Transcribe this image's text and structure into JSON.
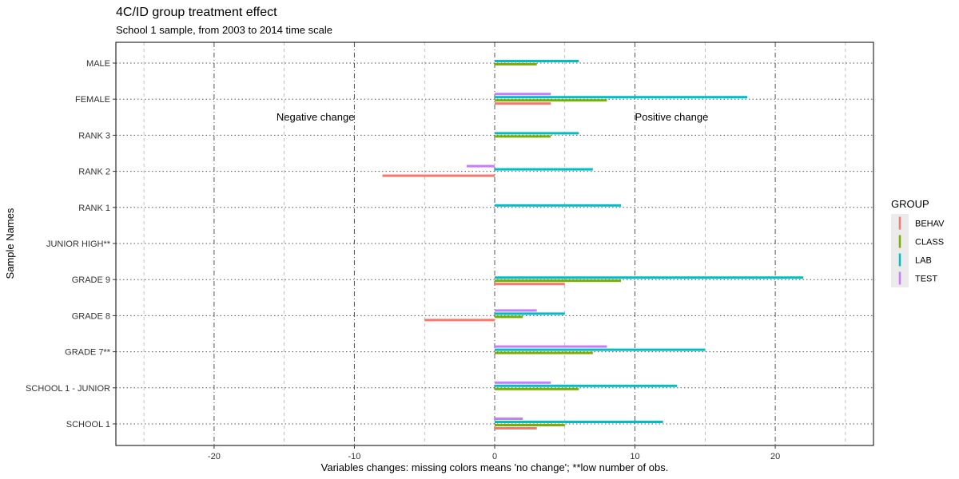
{
  "chart_data": {
    "type": "bar",
    "orientation": "horizontal",
    "title": "4C/ID group treatment effect",
    "subtitle": "School 1 sample, from 2003 to 2014 time scale",
    "xlabel": "Variables changes: missing colors means 'no change'; **low number of obs.",
    "ylabel": "Sample Names",
    "xlim": [
      -27,
      27
    ],
    "x_ticks": [
      -20,
      -10,
      0,
      10,
      20
    ],
    "grid": true,
    "legend_position": "right",
    "legend_title": "GROUP",
    "annotations": [
      {
        "text": "Negative change",
        "x": -10,
        "category": "FEMALE",
        "align": "end"
      },
      {
        "text": "Positive change",
        "x": 10,
        "category": "FEMALE",
        "align": "start"
      }
    ],
    "categories": [
      "MALE",
      "FEMALE",
      "RANK 3",
      "RANK 2",
      "RANK 1",
      "JUNIOR HIGH**",
      "GRADE 9",
      "GRADE 8",
      "GRADE 7**",
      "SCHOOL 1 - JUNIOR",
      "SCHOOL 1"
    ],
    "series": [
      {
        "name": "BEHAV",
        "color": "#F8766D",
        "values": [
          null,
          4,
          null,
          -8,
          null,
          null,
          5,
          -5,
          null,
          null,
          3
        ]
      },
      {
        "name": "CLASS",
        "color": "#7CAE00",
        "values": [
          3,
          8,
          4,
          null,
          null,
          null,
          9,
          2,
          7,
          6,
          5
        ]
      },
      {
        "name": "LAB",
        "color": "#00BFC4",
        "values": [
          6,
          18,
          6,
          7,
          9,
          null,
          22,
          5,
          15,
          13,
          12
        ]
      },
      {
        "name": "TEST",
        "color": "#C77CFF",
        "values": [
          null,
          4,
          null,
          -2,
          null,
          null,
          null,
          3,
          8,
          4,
          2
        ]
      }
    ]
  }
}
